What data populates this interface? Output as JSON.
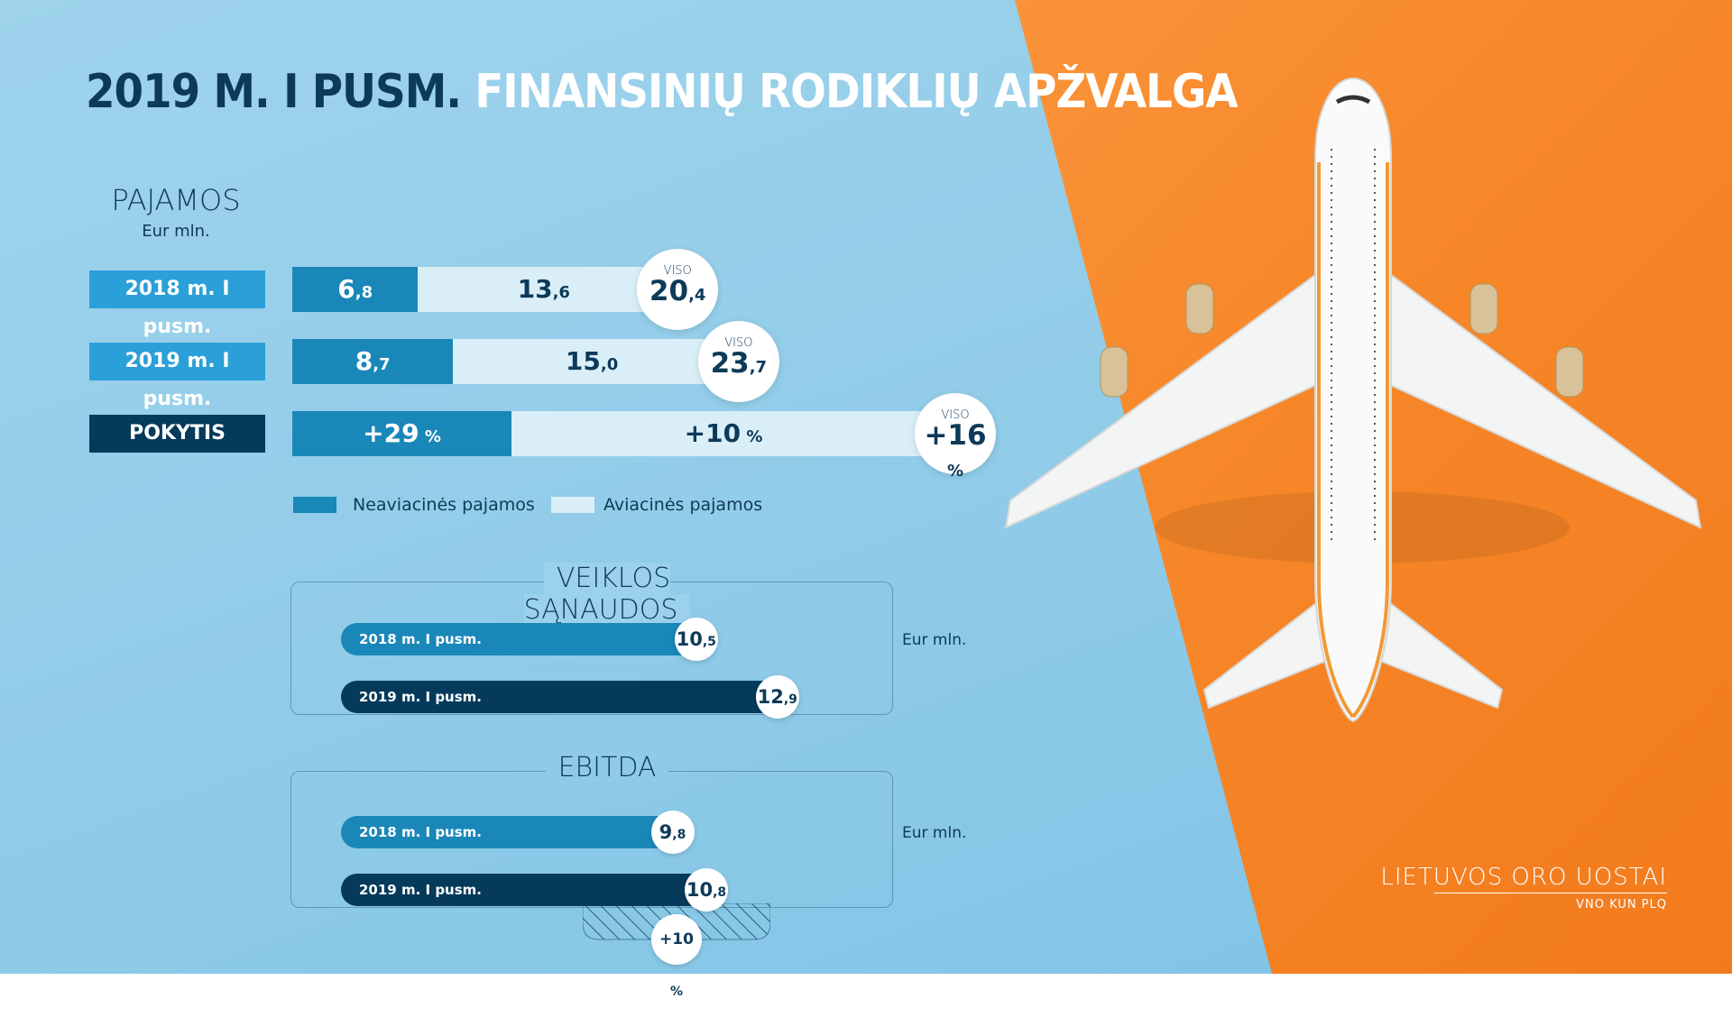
{
  "title": {
    "part1": "2019 M. I PUSM.",
    "part2": "FINANSINIŲ RODIKLIŲ APŽVALGA"
  },
  "revenue": {
    "heading": "PAJAMOS",
    "unit": "Eur mln.",
    "rows": [
      {
        "label": "2018 m. I pusm.",
        "nonaviation_int": "6",
        "nonaviation_dec": ",8",
        "aviation_int": "13",
        "aviation_dec": ",6",
        "total_label": "VISO",
        "total_int": "20",
        "total_dec": ",4"
      },
      {
        "label": "2019 m. I pusm.",
        "nonaviation_int": "8",
        "nonaviation_dec": ",7",
        "aviation_int": "15",
        "aviation_dec": ",0",
        "total_label": "VISO",
        "total_int": "23",
        "total_dec": ",7"
      },
      {
        "label": "POKYTIS",
        "nonaviation_int": "+29",
        "nonaviation_dec": " %",
        "aviation_int": "+10",
        "aviation_dec": " %",
        "total_label": "VISO",
        "total_int": "+16",
        "total_dec": " %"
      }
    ],
    "legend": {
      "nonaviation": "Neaviacinės pajamos",
      "aviation": "Aviacinės pajamos"
    }
  },
  "opex": {
    "heading": "VEIKLOS SĄNAUDOS",
    "unit": "Eur mln.",
    "rows": [
      {
        "label": "2018 m. I pusm.",
        "int": "10",
        "dec": ",5"
      },
      {
        "label": "2019 m. I pusm.",
        "int": "12",
        "dec": ",9"
      }
    ]
  },
  "ebitda": {
    "heading": "EBITDA",
    "unit": "Eur mln.",
    "rows": [
      {
        "label": "2018 m. I pusm.",
        "int": "9",
        "dec": ",8"
      },
      {
        "label": "2019 m. I pusm.",
        "int": "10",
        "dec": ",8"
      }
    ],
    "change_int": "+10",
    "change_dec": " %"
  },
  "logo": {
    "main": "LIETUVOS ORO UOSTAI",
    "sub": "VNO KUN PLQ"
  },
  "colors": {
    "dark_bar": "#1a87b9",
    "light_bar": "#d9eef7",
    "navy": "#053a5b",
    "orange": "#f7882a",
    "sky": "#8fcbe8"
  },
  "chart_data": [
    {
      "type": "bar",
      "title": "PAJAMOS",
      "ylabel": "Eur mln.",
      "categories": [
        "2018 m. I pusm.",
        "2019 m. I pusm."
      ],
      "series": [
        {
          "name": "Neaviacinės pajamos",
          "values": [
            6.8,
            8.7
          ]
        },
        {
          "name": "Aviacinės pajamos",
          "values": [
            13.6,
            15.0
          ]
        }
      ],
      "totals": [
        20.4,
        23.7
      ],
      "change_pct": {
        "Neaviacinės pajamos": 29,
        "Aviacinės pajamos": 10,
        "VISO": 16
      },
      "legend": "bottom"
    },
    {
      "type": "bar",
      "title": "VEIKLOS SĄNAUDOS",
      "ylabel": "Eur mln.",
      "categories": [
        "2018 m. I pusm.",
        "2019 m. I pusm."
      ],
      "values": [
        10.5,
        12.9
      ]
    },
    {
      "type": "bar",
      "title": "EBITDA",
      "ylabel": "Eur mln.",
      "categories": [
        "2018 m. I pusm.",
        "2019 m. I pusm."
      ],
      "values": [
        9.8,
        10.8
      ],
      "change_pct": 10
    }
  ]
}
